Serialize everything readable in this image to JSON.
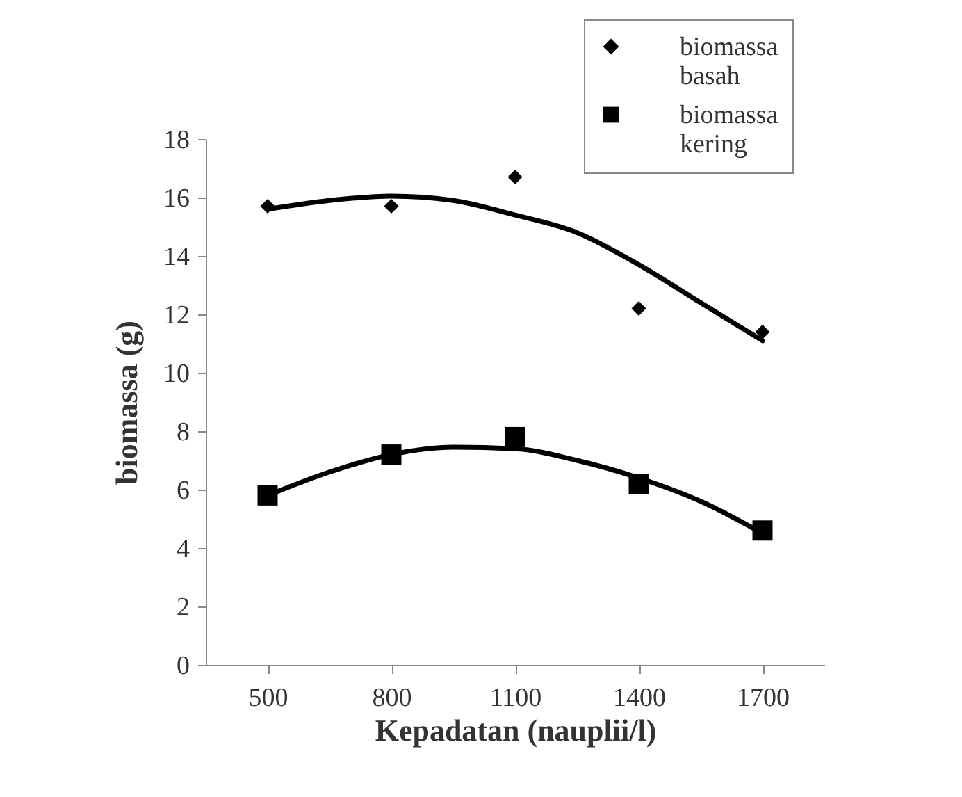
{
  "chart_data": {
    "type": "scatter",
    "xlabel": "Kepadatan (nauplii/l)",
    "ylabel": "biomassa (g)",
    "x": [
      500,
      800,
      1100,
      1400,
      1700
    ],
    "xlim": [
      350,
      1850
    ],
    "xticks": [
      500,
      800,
      1100,
      1400,
      1700
    ],
    "ylim": [
      0,
      18
    ],
    "yticks": [
      0,
      2,
      4,
      6,
      8,
      10,
      12,
      14,
      16,
      18
    ],
    "grid": false,
    "legend": "top right",
    "series": [
      {
        "name": "biomassa basah",
        "color": "#000000",
        "marker": "diamond",
        "values": [
          15.7,
          15.7,
          16.7,
          12.2,
          11.4
        ]
      },
      {
        "name": "biomassa kering",
        "color": "#000000",
        "marker": "square",
        "values": [
          5.8,
          7.2,
          7.8,
          6.2,
          4.6
        ]
      },
      {
        "type": "line",
        "color": "#000000",
        "marker": "none",
        "x": [
          500,
          650,
          800,
          950,
          1100,
          1250,
          1400,
          1550,
          1700
        ],
        "values": [
          15.6,
          15.9,
          16.05,
          15.9,
          15.4,
          14.8,
          13.7,
          12.4,
          11.1
        ]
      },
      {
        "type": "line",
        "color": "#000000",
        "marker": "none",
        "x": [
          500,
          650,
          800,
          950,
          1100,
          1250,
          1400,
          1550,
          1700
        ],
        "values": [
          5.8,
          6.6,
          7.2,
          7.45,
          7.4,
          7.0,
          6.4,
          5.6,
          4.5
        ]
      }
    ]
  }
}
